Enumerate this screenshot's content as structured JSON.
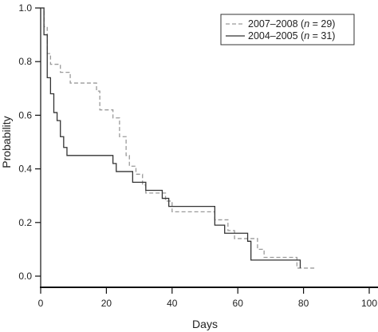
{
  "chart_data": {
    "type": "line",
    "xlabel": "Days",
    "ylabel": "Probability",
    "xlim": [
      0,
      100
    ],
    "ylim": [
      0,
      1.0
    ],
    "xticks": [
      "0",
      "20",
      "40",
      "60",
      "80",
      "100"
    ],
    "yticks": [
      "0.0",
      "0.2",
      "0.4",
      "0.6",
      "0.8",
      "1.0"
    ],
    "legend_position": "top-right",
    "grid": false,
    "series": [
      {
        "name": "2007–2008 (n = 29)",
        "legend_year": "2007–2008",
        "legend_n": "29",
        "line_style": "dashed",
        "color": "#9a9a9a",
        "x": [
          0,
          1,
          2,
          3,
          5,
          6,
          9,
          17,
          18,
          22,
          24,
          26,
          27,
          29,
          31,
          32,
          33,
          38,
          40,
          51,
          53,
          57,
          59,
          66,
          68,
          75,
          78,
          81,
          84
        ],
        "y": [
          1.0,
          0.93,
          0.83,
          0.79,
          0.79,
          0.76,
          0.72,
          0.69,
          0.62,
          0.59,
          0.52,
          0.45,
          0.41,
          0.38,
          0.34,
          0.31,
          0.31,
          0.28,
          0.24,
          0.24,
          0.21,
          0.17,
          0.14,
          0.1,
          0.07,
          0.07,
          0.03,
          0.03,
          0.03
        ]
      },
      {
        "name": "2004–2005 (n = 31)",
        "legend_year": "2004–2005",
        "legend_n": "31",
        "line_style": "solid",
        "color": "#333333",
        "x": [
          0,
          1,
          2,
          3,
          4,
          5,
          6,
          7,
          8,
          22,
          23,
          28,
          32,
          37,
          39,
          53,
          56,
          63,
          64,
          79
        ],
        "y": [
          1.0,
          0.9,
          0.74,
          0.68,
          0.61,
          0.58,
          0.52,
          0.48,
          0.45,
          0.42,
          0.39,
          0.35,
          0.32,
          0.29,
          0.26,
          0.19,
          0.16,
          0.13,
          0.06,
          0.03
        ]
      }
    ]
  }
}
